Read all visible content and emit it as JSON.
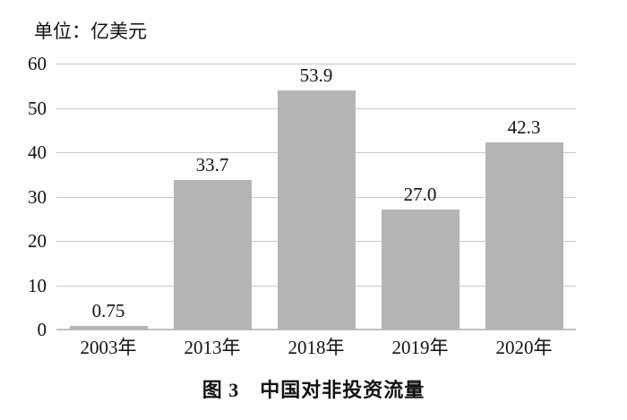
{
  "chart_data": {
    "type": "bar",
    "title": "图 3　中国对非投资流量",
    "unit_label": "单位：亿美元",
    "categories": [
      "2003年",
      "2013年",
      "2018年",
      "2019年",
      "2020年"
    ],
    "values": [
      0.75,
      33.7,
      53.9,
      27.0,
      42.3
    ],
    "value_labels": [
      "0.75",
      "33.7",
      "53.9",
      "27.0",
      "42.3"
    ],
    "xlabel": "",
    "ylabel": "",
    "ylim": [
      0,
      60
    ],
    "y_ticks": [
      0,
      10,
      20,
      30,
      40,
      50,
      60
    ],
    "grid": "horizontal",
    "legend": "none",
    "bar_color": "#b4b4b4",
    "gridline_color": "#c9c9c9",
    "axis_line_color": "#c0c0c0",
    "text_color": "#111111"
  }
}
